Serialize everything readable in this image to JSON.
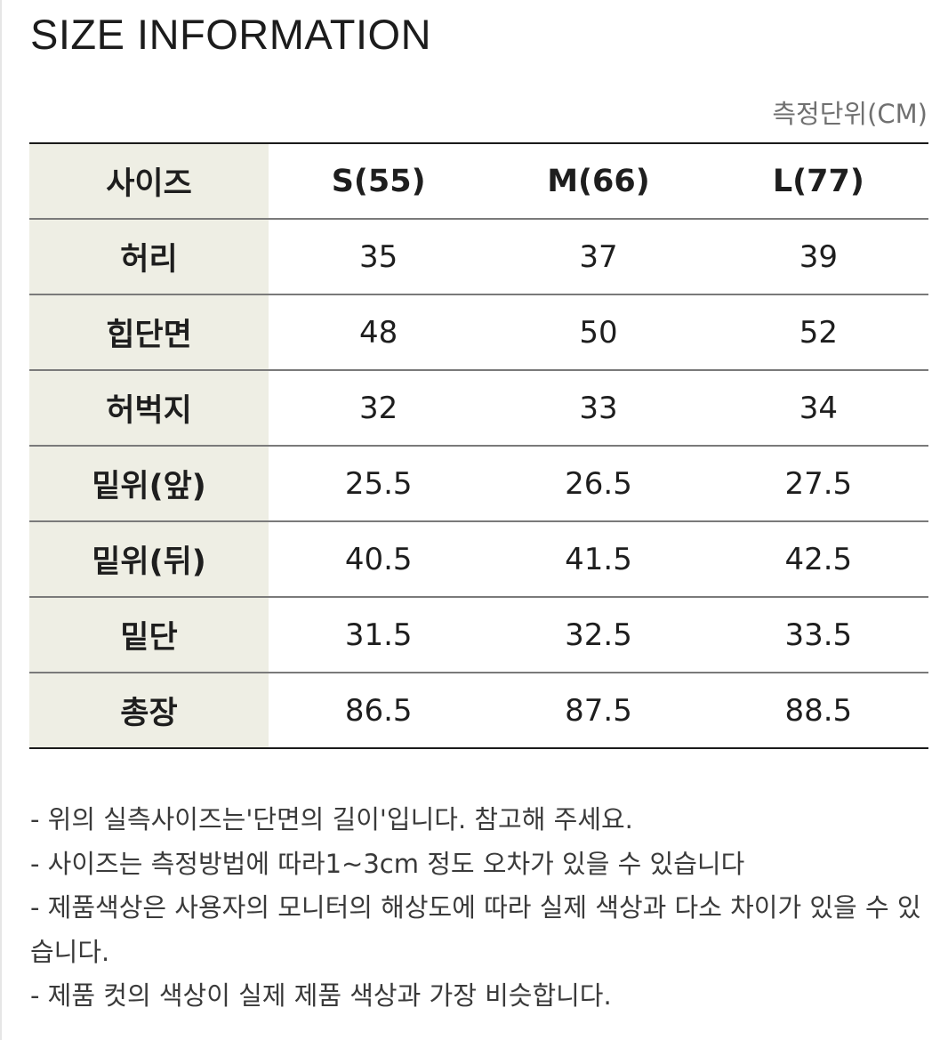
{
  "title": "SIZE INFORMATION",
  "unit_note": "측정단위(CM)",
  "table": {
    "header": {
      "label": "사이즈",
      "sizes": [
        "S(55)",
        "M(66)",
        "L(77)"
      ]
    },
    "rows": [
      {
        "label": "허리",
        "values": [
          "35",
          "37",
          "39"
        ]
      },
      {
        "label": "힙단면",
        "values": [
          "48",
          "50",
          "52"
        ]
      },
      {
        "label": "허벅지",
        "values": [
          "32",
          "33",
          "34"
        ]
      },
      {
        "label": "밑위(앞)",
        "values": [
          "25.5",
          "26.5",
          "27.5"
        ]
      },
      {
        "label": "밑위(뒤)",
        "values": [
          "40.5",
          "41.5",
          "42.5"
        ]
      },
      {
        "label": "밑단",
        "values": [
          "31.5",
          "32.5",
          "33.5"
        ]
      },
      {
        "label": "총장",
        "values": [
          "86.5",
          "87.5",
          "88.5"
        ]
      }
    ],
    "label_background": "#eeeee4"
  },
  "notes": [
    "- 위의 실측사이즈는'단면의 길이'입니다. 참고해 주세요.",
    "- 사이즈는 측정방법에 따라1~3cm 정도 오차가 있을 수 있습니다",
    "- 제품색상은 사용자의 모니터의 해상도에 따라 실제 색상과 다소 차이가 있을 수 있습니다.",
    "- 제품 컷의 색상이 실제 제품 색상과 가장 비슷합니다."
  ]
}
